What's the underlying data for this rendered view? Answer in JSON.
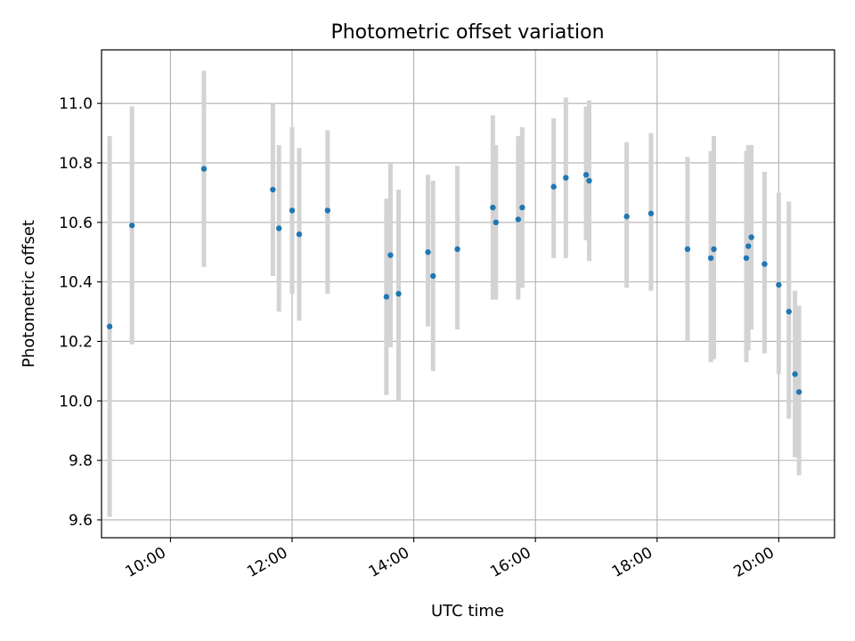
{
  "chart_data": {
    "type": "scatter",
    "title": "Photometric offset variation",
    "xlabel": "UTC time",
    "ylabel": "Photometric offset",
    "x_unit": "hours UTC",
    "xlim": [
      "08:52",
      "20:55"
    ],
    "ylim": [
      9.54,
      11.18
    ],
    "x_ticks": [
      "10:00",
      "12:00",
      "14:00",
      "16:00",
      "18:00",
      "20:00"
    ],
    "y_ticks": [
      "9.6",
      "9.8",
      "10.0",
      "10.2",
      "10.4",
      "10.6",
      "10.8",
      "11.0"
    ],
    "grid": true,
    "colors": {
      "points": "#1f77b4",
      "errorbars": "#d3d3d3",
      "grid": "#b0b0b0"
    },
    "points": [
      {
        "x": "09:00",
        "y": 10.25,
        "low": 9.61,
        "high": 10.89
      },
      {
        "x": "09:22",
        "y": 10.59,
        "low": 10.19,
        "high": 10.99
      },
      {
        "x": "10:33",
        "y": 10.78,
        "low": 10.45,
        "high": 11.11
      },
      {
        "x": "11:41",
        "y": 10.71,
        "low": 10.42,
        "high": 11.0
      },
      {
        "x": "11:47",
        "y": 10.58,
        "low": 10.3,
        "high": 10.86
      },
      {
        "x": "12:00",
        "y": 10.64,
        "low": 10.36,
        "high": 10.92
      },
      {
        "x": "12:07",
        "y": 10.56,
        "low": 10.27,
        "high": 10.85
      },
      {
        "x": "12:35",
        "y": 10.64,
        "low": 10.36,
        "high": 10.91
      },
      {
        "x": "13:33",
        "y": 10.35,
        "low": 10.02,
        "high": 10.68
      },
      {
        "x": "13:37",
        "y": 10.49,
        "low": 10.18,
        "high": 10.8
      },
      {
        "x": "13:45",
        "y": 10.36,
        "low": 10.0,
        "high": 10.71
      },
      {
        "x": "14:14",
        "y": 10.5,
        "low": 10.25,
        "high": 10.76
      },
      {
        "x": "14:19",
        "y": 10.42,
        "low": 10.1,
        "high": 10.74
      },
      {
        "x": "14:43",
        "y": 10.51,
        "low": 10.24,
        "high": 10.79
      },
      {
        "x": "15:18",
        "y": 10.65,
        "low": 10.34,
        "high": 10.96
      },
      {
        "x": "15:21",
        "y": 10.6,
        "low": 10.34,
        "high": 10.86
      },
      {
        "x": "15:43",
        "y": 10.61,
        "low": 10.34,
        "high": 10.89
      },
      {
        "x": "15:47",
        "y": 10.65,
        "low": 10.38,
        "high": 10.92
      },
      {
        "x": "16:18",
        "y": 10.72,
        "low": 10.48,
        "high": 10.95
      },
      {
        "x": "16:30",
        "y": 10.75,
        "low": 10.48,
        "high": 11.02
      },
      {
        "x": "16:50",
        "y": 10.76,
        "low": 10.54,
        "high": 10.99
      },
      {
        "x": "16:53",
        "y": 10.74,
        "low": 10.47,
        "high": 11.01
      },
      {
        "x": "17:30",
        "y": 10.62,
        "low": 10.38,
        "high": 10.87
      },
      {
        "x": "17:54",
        "y": 10.63,
        "low": 10.37,
        "high": 10.9
      },
      {
        "x": "18:30",
        "y": 10.51,
        "low": 10.2,
        "high": 10.82
      },
      {
        "x": "18:53",
        "y": 10.48,
        "low": 10.13,
        "high": 10.84
      },
      {
        "x": "18:56",
        "y": 10.51,
        "low": 10.14,
        "high": 10.89
      },
      {
        "x": "19:28",
        "y": 10.48,
        "low": 10.13,
        "high": 10.84
      },
      {
        "x": "19:30",
        "y": 10.52,
        "low": 10.17,
        "high": 10.86
      },
      {
        "x": "19:33",
        "y": 10.55,
        "low": 10.24,
        "high": 10.86
      },
      {
        "x": "19:46",
        "y": 10.46,
        "low": 10.16,
        "high": 10.77
      },
      {
        "x": "20:00",
        "y": 10.39,
        "low": 10.09,
        "high": 10.7
      },
      {
        "x": "20:10",
        "y": 10.3,
        "low": 9.94,
        "high": 10.67
      },
      {
        "x": "20:16",
        "y": 10.09,
        "low": 9.81,
        "high": 10.37
      },
      {
        "x": "20:20",
        "y": 10.03,
        "low": 9.75,
        "high": 10.32
      }
    ]
  }
}
